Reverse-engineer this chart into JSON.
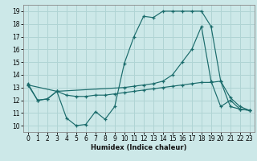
{
  "xlabel": "Humidex (Indice chaleur)",
  "xlim": [
    -0.5,
    23.5
  ],
  "ylim": [
    9.5,
    19.5
  ],
  "xticks": [
    0,
    1,
    2,
    3,
    4,
    5,
    6,
    7,
    8,
    9,
    10,
    11,
    12,
    13,
    14,
    15,
    16,
    17,
    18,
    19,
    20,
    21,
    22,
    23
  ],
  "yticks": [
    10,
    11,
    12,
    13,
    14,
    15,
    16,
    17,
    18,
    19
  ],
  "bg_color": "#cce8e8",
  "grid_color": "#b0d4d4",
  "line_color": "#1a6b6b",
  "line1_x": [
    0,
    1,
    2,
    3,
    4,
    5,
    6,
    7,
    8,
    9,
    10,
    11,
    12,
    13,
    14,
    15,
    16,
    17,
    18,
    19,
    20,
    21,
    22,
    23
  ],
  "line1_y": [
    13.3,
    12.0,
    12.1,
    12.7,
    10.6,
    10.0,
    10.1,
    11.1,
    10.5,
    11.5,
    14.9,
    17.0,
    18.6,
    18.5,
    19.0,
    19.0,
    19.0,
    19.0,
    19.0,
    17.8,
    13.5,
    12.2,
    11.5,
    11.2
  ],
  "line2_x": [
    0,
    1,
    2,
    3,
    4,
    5,
    6,
    7,
    8,
    9,
    10,
    11,
    12,
    13,
    14,
    15,
    16,
    17,
    18,
    19,
    20,
    21,
    22,
    23
  ],
  "line2_y": [
    13.2,
    12.0,
    12.1,
    12.7,
    12.4,
    12.3,
    12.3,
    12.4,
    12.4,
    12.5,
    12.6,
    12.7,
    12.8,
    12.9,
    13.0,
    13.1,
    13.2,
    13.3,
    13.4,
    13.4,
    13.5,
    11.5,
    11.3,
    11.2
  ],
  "line3_x": [
    0,
    3,
    10,
    11,
    12,
    13,
    14,
    15,
    16,
    17,
    18,
    19,
    20,
    21,
    22,
    23
  ],
  "line3_y": [
    13.2,
    12.7,
    13.0,
    13.1,
    13.2,
    13.3,
    13.5,
    14.0,
    15.0,
    16.0,
    17.8,
    13.5,
    11.5,
    12.0,
    11.3,
    11.2
  ]
}
